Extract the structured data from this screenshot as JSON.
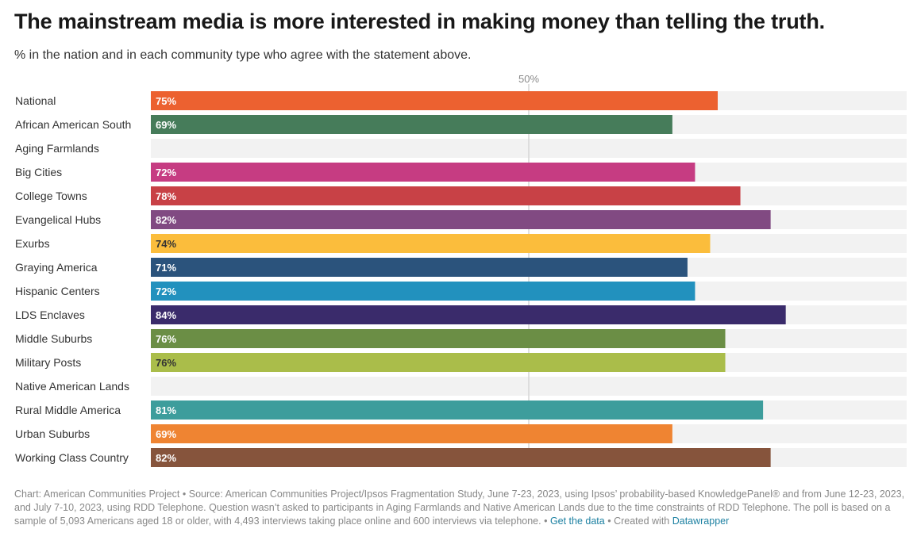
{
  "title": "The mainstream media is more interested in making money than telling the truth.",
  "subtitle": "% in the nation and in each community type who agree with the statement above.",
  "chart_data": {
    "type": "bar",
    "orientation": "horizontal",
    "categories": [
      "National",
      "African American South",
      "Aging Farmlands",
      "Big Cities",
      "College Towns",
      "Evangelical Hubs",
      "Exurbs",
      "Graying America",
      "Hispanic Centers",
      "LDS Enclaves",
      "Middle Suburbs",
      "Military Posts",
      "Native American Lands",
      "Rural Middle America",
      "Urban Suburbs",
      "Working Class Country"
    ],
    "values": [
      75,
      69,
      null,
      72,
      78,
      82,
      74,
      71,
      72,
      84,
      76,
      76,
      null,
      81,
      69,
      82
    ],
    "value_labels": [
      "75%",
      "69%",
      "",
      "72%",
      "78%",
      "82%",
      "74%",
      "71%",
      "72%",
      "84%",
      "76%",
      "76%",
      "",
      "81%",
      "69%",
      "82%"
    ],
    "colors": [
      "#ec6130",
      "#467c5a",
      "#cccccc",
      "#c63c82",
      "#c84146",
      "#814a82",
      "#fbbd3c",
      "#2b537c",
      "#2291be",
      "#3a2b6b",
      "#6b8e45",
      "#aabd4a",
      "#cccccc",
      "#3d9d9c",
      "#ef8432",
      "#86543c"
    ],
    "label_colors": [
      "#ffffff",
      "#ffffff",
      "#ffffff",
      "#ffffff",
      "#ffffff",
      "#ffffff",
      "#333333",
      "#ffffff",
      "#ffffff",
      "#ffffff",
      "#ffffff",
      "#333333",
      "#ffffff",
      "#ffffff",
      "#ffffff",
      "#ffffff"
    ],
    "xlim": [
      0,
      100
    ],
    "reference_line": {
      "value": 50,
      "label": "50%"
    },
    "track_color": "#f2f2f2",
    "reference_line_color": "#d6d6d6",
    "title": "The mainstream media is more interested in making money than telling the truth.",
    "xlabel": "",
    "ylabel": ""
  },
  "footer": {
    "text": "Chart: American Communities Project • Source: American Communities Project/Ipsos Fragmentation Study, June 7-23, 2023, using Ipsos’ probability-based KnowledgePanel® and from June 12-23, 2023, and July 7-10, 2023, using RDD Telephone. Question wasn’t asked to participants in Aging Farmlands and Native American Lands due to the time constraints of RDD Telephone. The poll is based on a sample of 5,093 Americans aged 18 or older, with 4,493 interviews taking place online and 600 interviews via telephone. • ",
    "get_data_link": "Get the data",
    "created_with_text": " • Created with ",
    "datawrapper_link": "Datawrapper"
  }
}
